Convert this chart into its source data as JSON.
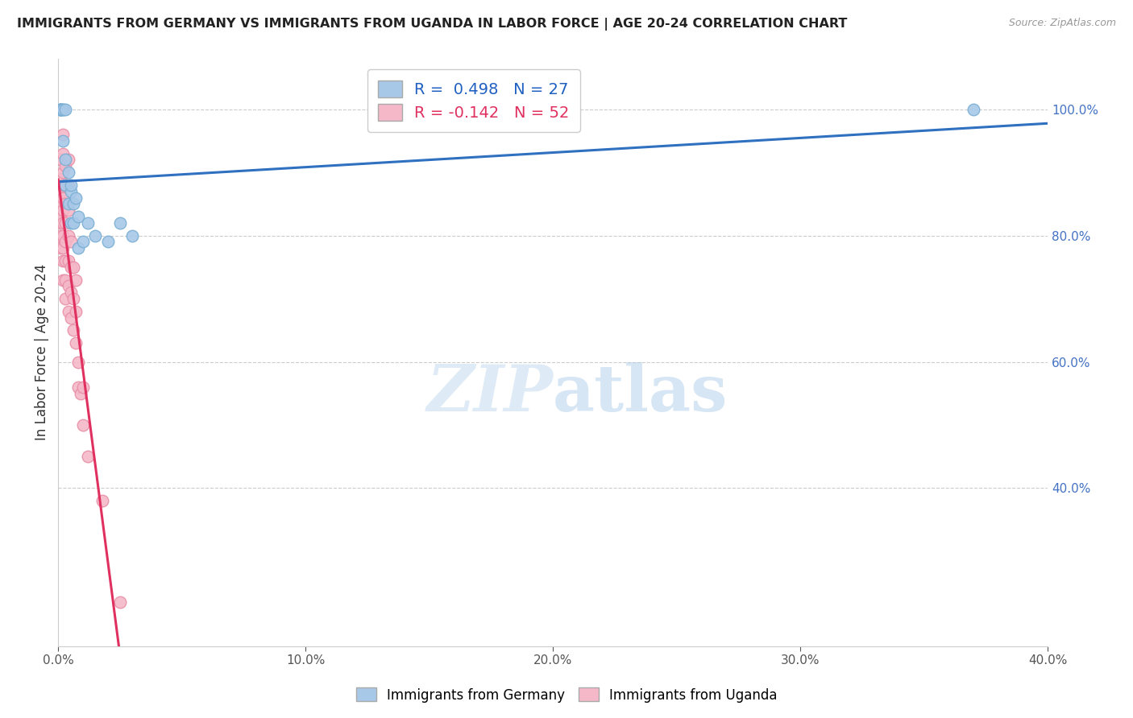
{
  "title": "IMMIGRANTS FROM GERMANY VS IMMIGRANTS FROM UGANDA IN LABOR FORCE | AGE 20-24 CORRELATION CHART",
  "source": "Source: ZipAtlas.com",
  "ylabel_left": "In Labor Force | Age 20-24",
  "xlim": [
    0.0,
    0.4
  ],
  "ylim": [
    0.15,
    1.08
  ],
  "xticks": [
    0.0,
    0.1,
    0.2,
    0.3,
    0.4
  ],
  "xtick_labels": [
    "0.0%",
    "10.0%",
    "20.0%",
    "30.0%",
    "40.0%"
  ],
  "yticks_right": [
    0.4,
    0.6,
    0.8,
    1.0
  ],
  "ytick_labels_right": [
    "40.0%",
    "60.0%",
    "80.0%",
    "100.0%"
  ],
  "germany_R": 0.498,
  "germany_N": 27,
  "uganda_R": -0.142,
  "uganda_N": 52,
  "germany_color": "#a8c8e8",
  "germany_edge_color": "#7aafd4",
  "uganda_color": "#f4b8c8",
  "uganda_edge_color": "#e890a8",
  "germany_line_color": "#3070c0",
  "uganda_line_color": "#e03060",
  "uganda_dash_color": "#e896b0",
  "germany_x": [
    0.001,
    0.001,
    0.001,
    0.001,
    0.002,
    0.002,
    0.002,
    0.003,
    0.003,
    0.003,
    0.004,
    0.004,
    0.005,
    0.005,
    0.005,
    0.006,
    0.006,
    0.007,
    0.008,
    0.008,
    0.01,
    0.012,
    0.015,
    0.02,
    0.025,
    0.03,
    0.37
  ],
  "germany_y": [
    1.0,
    1.0,
    1.0,
    1.0,
    0.95,
    1.0,
    1.0,
    0.92,
    0.88,
    1.0,
    0.85,
    0.9,
    0.87,
    0.82,
    0.88,
    0.82,
    0.85,
    0.86,
    0.83,
    0.78,
    0.79,
    0.82,
    0.8,
    0.79,
    0.82,
    0.8,
    1.0
  ],
  "uganda_x": [
    0.001,
    0.001,
    0.001,
    0.001,
    0.001,
    0.001,
    0.001,
    0.001,
    0.002,
    0.002,
    0.002,
    0.002,
    0.002,
    0.002,
    0.002,
    0.002,
    0.002,
    0.002,
    0.002,
    0.003,
    0.003,
    0.003,
    0.003,
    0.003,
    0.003,
    0.003,
    0.003,
    0.004,
    0.004,
    0.004,
    0.004,
    0.004,
    0.004,
    0.004,
    0.005,
    0.005,
    0.005,
    0.005,
    0.006,
    0.006,
    0.006,
    0.007,
    0.007,
    0.007,
    0.008,
    0.008,
    0.009,
    0.01,
    0.01,
    0.012,
    0.018,
    0.025
  ],
  "uganda_y": [
    0.78,
    0.8,
    0.82,
    0.83,
    0.85,
    0.87,
    0.89,
    0.92,
    0.73,
    0.76,
    0.78,
    0.8,
    0.82,
    0.84,
    0.86,
    0.88,
    0.9,
    0.93,
    0.96,
    0.7,
    0.73,
    0.76,
    0.79,
    0.82,
    0.85,
    0.88,
    0.91,
    0.68,
    0.72,
    0.76,
    0.8,
    0.84,
    0.88,
    0.92,
    0.67,
    0.71,
    0.75,
    0.79,
    0.65,
    0.7,
    0.75,
    0.63,
    0.68,
    0.73,
    0.6,
    0.56,
    0.55,
    0.5,
    0.56,
    0.45,
    0.38,
    0.22
  ]
}
